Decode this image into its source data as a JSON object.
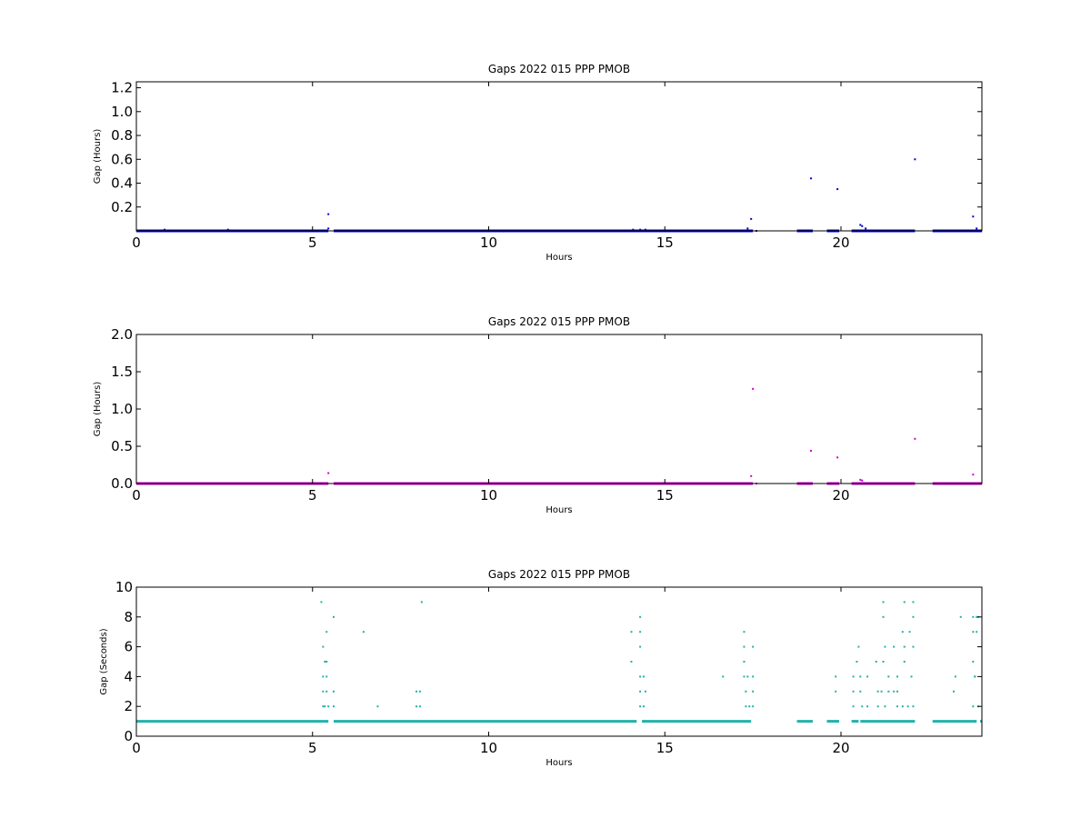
{
  "chart_data": [
    {
      "type": "scatter",
      "title": "Gaps 2022 015 PPP  PMOB",
      "xlabel": "Hours",
      "ylabel": "Gap (Hours)",
      "xlim": [
        0,
        24
      ],
      "ylim": [
        0,
        1.25
      ],
      "xticks": [
        "0",
        "5",
        "10",
        "15",
        "20"
      ],
      "yticks": [
        "0.2",
        "0.4",
        "0.6",
        "0.8",
        "1.0",
        "1.2"
      ],
      "color": "#0000cc",
      "baseline": 0.0,
      "dense_segments": [
        [
          0,
          5.45
        ],
        [
          5.6,
          17.5
        ],
        [
          18.75,
          19.2
        ],
        [
          19.6,
          19.95
        ],
        [
          20.3,
          22.1
        ],
        [
          22.6,
          24
        ]
      ],
      "points": [
        [
          0.8,
          0.01
        ],
        [
          2.6,
          0.01
        ],
        [
          5.45,
          0.14
        ],
        [
          5.45,
          0.02
        ],
        [
          14.1,
          0.01
        ],
        [
          14.3,
          0.01
        ],
        [
          14.45,
          0.01
        ],
        [
          17.35,
          0.02
        ],
        [
          17.45,
          0.1
        ],
        [
          17.6,
          0.0
        ],
        [
          19.15,
          0.44
        ],
        [
          19.9,
          0.35
        ],
        [
          20.55,
          0.05
        ],
        [
          20.6,
          0.04
        ],
        [
          20.7,
          0.02
        ],
        [
          22.1,
          0.6
        ],
        [
          23.75,
          0.12
        ],
        [
          23.85,
          0.02
        ],
        [
          23.95,
          0.0
        ]
      ]
    },
    {
      "type": "scatter",
      "title": "Gaps 2022 015 PPP  PMOB",
      "xlabel": "Hours",
      "ylabel": "Gap (Hours)",
      "xlim": [
        0,
        24
      ],
      "ylim": [
        0,
        2.0
      ],
      "xticks": [
        "0",
        "5",
        "10",
        "15",
        "20"
      ],
      "yticks": [
        "0.0",
        "0.5",
        "1.0",
        "1.5",
        "2.0"
      ],
      "color": "#cc00cc",
      "baseline": 0.0,
      "dense_segments": [
        [
          0,
          5.45
        ],
        [
          5.6,
          17.5
        ],
        [
          18.75,
          19.2
        ],
        [
          19.6,
          19.95
        ],
        [
          20.3,
          22.1
        ],
        [
          22.6,
          24
        ]
      ],
      "points": [
        [
          5.45,
          0.14
        ],
        [
          17.45,
          0.1
        ],
        [
          17.5,
          1.27
        ],
        [
          17.6,
          0.0
        ],
        [
          19.15,
          0.44
        ],
        [
          19.9,
          0.35
        ],
        [
          20.55,
          0.05
        ],
        [
          20.6,
          0.04
        ],
        [
          22.1,
          0.6
        ],
        [
          23.75,
          0.12
        ],
        [
          23.95,
          0.0
        ]
      ]
    },
    {
      "type": "scatter",
      "title": "Gaps 2022 015 PPP  PMOB",
      "xlabel": "Hours",
      "ylabel": "Gap (Seconds)",
      "xlim": [
        0,
        24
      ],
      "ylim": [
        0,
        10
      ],
      "xticks": [
        "0",
        "5",
        "10",
        "15",
        "20"
      ],
      "yticks": [
        "0",
        "2",
        "4",
        "6",
        "8",
        "10"
      ],
      "color": "#20b2aa",
      "baseline": 1,
      "dense_segments": [
        [
          0,
          5.45
        ],
        [
          5.6,
          14.2
        ],
        [
          14.35,
          17.45
        ],
        [
          18.75,
          19.2
        ],
        [
          19.6,
          19.95
        ],
        [
          20.3,
          20.5
        ],
        [
          20.55,
          22.1
        ],
        [
          22.6,
          23.85
        ],
        [
          23.95,
          24
        ]
      ],
      "points": [
        [
          5.25,
          9
        ],
        [
          5.3,
          6
        ],
        [
          5.3,
          4
        ],
        [
          5.3,
          3
        ],
        [
          5.3,
          2
        ],
        [
          5.35,
          5
        ],
        [
          5.4,
          7
        ],
        [
          5.4,
          5
        ],
        [
          5.4,
          4
        ],
        [
          5.4,
          3
        ],
        [
          5.35,
          2
        ],
        [
          5.45,
          2
        ],
        [
          5.6,
          8
        ],
        [
          5.6,
          3
        ],
        [
          5.6,
          2
        ],
        [
          6.45,
          7
        ],
        [
          6.85,
          2
        ],
        [
          7.95,
          3
        ],
        [
          8.05,
          3
        ],
        [
          8.1,
          9
        ],
        [
          8.05,
          2
        ],
        [
          7.95,
          2
        ],
        [
          14.05,
          5
        ],
        [
          14.05,
          7
        ],
        [
          14.3,
          8
        ],
        [
          14.3,
          7
        ],
        [
          14.3,
          6
        ],
        [
          14.3,
          4
        ],
        [
          14.3,
          3
        ],
        [
          14.3,
          2
        ],
        [
          14.4,
          2
        ],
        [
          14.4,
          4
        ],
        [
          14.45,
          3
        ],
        [
          16.65,
          4
        ],
        [
          17.25,
          7
        ],
        [
          17.25,
          6
        ],
        [
          17.25,
          5
        ],
        [
          17.25,
          4
        ],
        [
          17.3,
          3
        ],
        [
          17.3,
          2
        ],
        [
          17.4,
          2
        ],
        [
          17.35,
          4
        ],
        [
          17.5,
          6
        ],
        [
          17.5,
          4
        ],
        [
          17.5,
          3
        ],
        [
          17.5,
          2
        ],
        [
          19.85,
          4
        ],
        [
          19.85,
          3
        ],
        [
          20.35,
          4
        ],
        [
          20.35,
          3
        ],
        [
          20.35,
          2
        ],
        [
          20.45,
          5
        ],
        [
          20.5,
          6
        ],
        [
          20.55,
          4
        ],
        [
          20.55,
          3
        ],
        [
          20.6,
          2
        ],
        [
          20.75,
          2
        ],
        [
          20.75,
          4
        ],
        [
          21.0,
          5
        ],
        [
          21.05,
          3
        ],
        [
          21.05,
          2
        ],
        [
          21.15,
          3
        ],
        [
          21.2,
          9
        ],
        [
          21.2,
          8
        ],
        [
          21.2,
          5
        ],
        [
          21.25,
          6
        ],
        [
          21.25,
          2
        ],
        [
          21.35,
          3
        ],
        [
          21.35,
          4
        ],
        [
          21.5,
          3
        ],
        [
          21.5,
          6
        ],
        [
          21.6,
          2
        ],
        [
          21.6,
          3
        ],
        [
          21.6,
          4
        ],
        [
          21.75,
          7
        ],
        [
          21.75,
          2
        ],
        [
          21.8,
          9
        ],
        [
          21.8,
          5
        ],
        [
          21.8,
          6
        ],
        [
          21.9,
          2
        ],
        [
          21.95,
          7
        ],
        [
          22.0,
          4
        ],
        [
          22.05,
          9
        ],
        [
          22.05,
          8
        ],
        [
          22.05,
          6
        ],
        [
          22.05,
          2
        ],
        [
          23.2,
          3
        ],
        [
          23.25,
          4
        ],
        [
          23.4,
          8
        ],
        [
          23.75,
          8
        ],
        [
          23.75,
          7
        ],
        [
          23.75,
          5
        ],
        [
          23.8,
          4
        ],
        [
          23.85,
          8
        ],
        [
          23.85,
          7
        ],
        [
          23.9,
          8
        ],
        [
          23.75,
          2
        ],
        [
          23.9,
          2
        ],
        [
          23.8,
          4
        ]
      ]
    }
  ]
}
